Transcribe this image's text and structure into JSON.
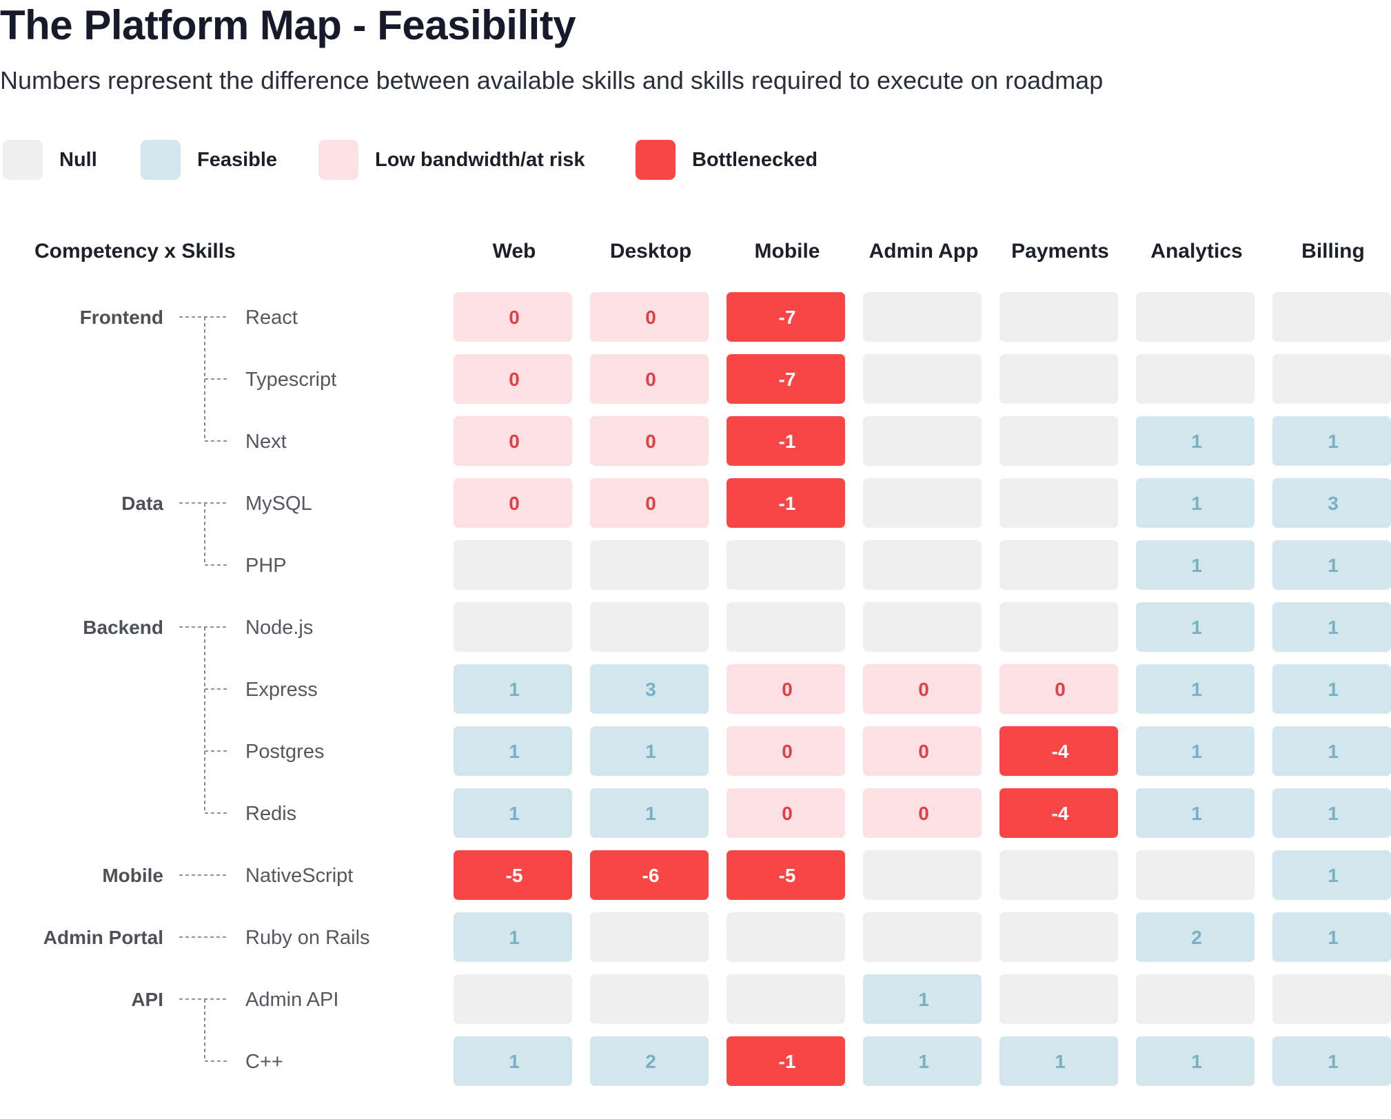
{
  "header": {
    "title": "The Platform Map - Feasibility",
    "subtitle": "Numbers represent the difference between available skills and skills required to execute on roadmap"
  },
  "legend": [
    {
      "key": "null",
      "label": "Null",
      "color": "#efefef"
    },
    {
      "key": "feasible",
      "label": "Feasible",
      "color": "#d2e7ed"
    },
    {
      "key": "at_risk",
      "label": "Low bandwidth/at risk",
      "color": "#fde1e2"
    },
    {
      "key": "bottleneck",
      "label": "Bottlenecked",
      "color": "#f84545"
    }
  ],
  "colors": {
    "null_bg": "#efefef",
    "feasible_bg": "#d2e7ed",
    "feasible_text": "#79b0c4",
    "at_risk_bg": "#fde1e2",
    "at_risk_text": "#df4045",
    "bottleneck_bg": "#f84545",
    "bottleneck_text": "#ffffff"
  },
  "chart_data": {
    "type": "table",
    "title": "The Platform Map - Feasibility",
    "corner_label": "Competency x Skills",
    "columns": [
      "Web",
      "Desktop",
      "Mobile",
      "Admin App",
      "Payments",
      "Analytics",
      "Billing"
    ],
    "groups": [
      {
        "name": "Frontend",
        "rows": [
          {
            "skill": "React",
            "values": [
              "0",
              "0",
              "-7",
              "",
              "",
              "",
              ""
            ]
          },
          {
            "skill": "Typescript",
            "values": [
              "0",
              "0",
              "-7",
              "",
              "",
              "",
              ""
            ]
          },
          {
            "skill": "Next",
            "values": [
              "0",
              "0",
              "-1",
              "",
              "",
              "1",
              "1"
            ]
          }
        ]
      },
      {
        "name": "Data",
        "rows": [
          {
            "skill": "MySQL",
            "values": [
              "0",
              "0",
              "-1",
              "",
              "",
              "1",
              "3"
            ]
          },
          {
            "skill": "PHP",
            "values": [
              "",
              "",
              "",
              "",
              "",
              "1",
              "1"
            ]
          }
        ]
      },
      {
        "name": "Backend",
        "rows": [
          {
            "skill": "Node.js",
            "values": [
              "",
              "",
              "",
              "",
              "",
              "1",
              "1"
            ]
          },
          {
            "skill": "Express",
            "values": [
              "1",
              "3",
              "0",
              "0",
              "0",
              "1",
              "1"
            ]
          },
          {
            "skill": "Postgres",
            "values": [
              "1",
              "1",
              "0",
              "0",
              "-4",
              "1",
              "1"
            ]
          },
          {
            "skill": "Redis",
            "values": [
              "1",
              "1",
              "0",
              "0",
              "-4",
              "1",
              "1"
            ]
          }
        ]
      },
      {
        "name": "Mobile",
        "rows": [
          {
            "skill": "NativeScript",
            "values": [
              "-5",
              "-6",
              "-5",
              "",
              "",
              "",
              "1"
            ]
          }
        ]
      },
      {
        "name": "Admin Portal",
        "rows": [
          {
            "skill": "Ruby on Rails",
            "values": [
              "1",
              "",
              "",
              "",
              "",
              "2",
              "1"
            ]
          }
        ]
      },
      {
        "name": "API",
        "rows": [
          {
            "skill": "Admin API",
            "values": [
              "",
              "",
              "",
              "1",
              "",
              "",
              ""
            ]
          },
          {
            "skill": "C++",
            "values": [
              "1",
              "2",
              "-1",
              "1",
              "1",
              "1",
              "1"
            ]
          }
        ]
      }
    ]
  }
}
